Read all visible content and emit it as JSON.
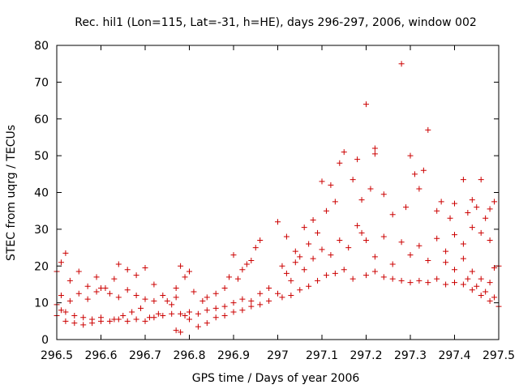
{
  "chart_data": {
    "type": "scatter",
    "title": "Rec. hil1 (Lon=115, Lat=-31, h=HE), days 296-297, 2006, window 002",
    "xlabel": "GPS time / Days of year 2006",
    "ylabel": "STEC from uqrg / TECUs",
    "xlim": [
      296.5,
      297.5
    ],
    "ylim": [
      0,
      80
    ],
    "x_ticks": [
      296.5,
      296.6,
      296.7,
      296.8,
      296.9,
      297,
      297.1,
      297.2,
      297.3,
      297.4,
      297.5
    ],
    "x_tick_labels": [
      "296.5",
      "296.6",
      "296.7",
      "296.8",
      "296.9",
      "297",
      "297.1",
      "297.2",
      "297.3",
      "297.4",
      "297.5"
    ],
    "y_ticks": [
      0,
      10,
      20,
      30,
      40,
      50,
      60,
      70,
      80
    ],
    "y_tick_labels": [
      "0",
      "10",
      "20",
      "30",
      "40",
      "50",
      "60",
      "70",
      "80"
    ],
    "grid": false,
    "legend": "none",
    "marker": "plus",
    "color": "#cc0000",
    "series": [
      {
        "points": [
          [
            296.5,
            18.5
          ],
          [
            296.51,
            21.0
          ],
          [
            296.52,
            23.5
          ],
          [
            296.53,
            16.0
          ],
          [
            296.55,
            18.5
          ],
          [
            296.57,
            14.5
          ],
          [
            296.59,
            17.0
          ],
          [
            296.61,
            14.0
          ],
          [
            296.63,
            16.5
          ],
          [
            296.64,
            20.5
          ],
          [
            296.66,
            19.0
          ],
          [
            296.68,
            17.5
          ],
          [
            296.7,
            19.5
          ],
          [
            296.72,
            15.0
          ],
          [
            296.51,
            12.0
          ],
          [
            296.53,
            10.5
          ],
          [
            296.55,
            12.5
          ],
          [
            296.57,
            11.0
          ],
          [
            296.59,
            13.0
          ],
          [
            296.6,
            14.0
          ],
          [
            296.62,
            12.5
          ],
          [
            296.64,
            11.5
          ],
          [
            296.66,
            13.5
          ],
          [
            296.68,
            12.0
          ],
          [
            296.7,
            11.0
          ],
          [
            296.72,
            10.5
          ],
          [
            296.74,
            12.0
          ],
          [
            296.76,
            9.5
          ],
          [
            296.77,
            11.5
          ],
          [
            296.5,
            9.5
          ],
          [
            296.51,
            8.0
          ],
          [
            296.52,
            7.5
          ],
          [
            296.54,
            6.5
          ],
          [
            296.56,
            6.0
          ],
          [
            296.58,
            5.5
          ],
          [
            296.6,
            6.0
          ],
          [
            296.62,
            5.0
          ],
          [
            296.64,
            5.5
          ],
          [
            296.66,
            5.0
          ],
          [
            296.68,
            5.5
          ],
          [
            296.7,
            5.0
          ],
          [
            296.72,
            6.0
          ],
          [
            296.74,
            6.5
          ],
          [
            296.76,
            7.0
          ],
          [
            296.5,
            6.5
          ],
          [
            296.52,
            5.0
          ],
          [
            296.54,
            4.5
          ],
          [
            296.56,
            4.0
          ],
          [
            296.58,
            4.5
          ],
          [
            296.6,
            5.0
          ],
          [
            296.63,
            5.5
          ],
          [
            296.65,
            6.5
          ],
          [
            296.67,
            7.5
          ],
          [
            296.69,
            8.5
          ],
          [
            296.71,
            6.0
          ],
          [
            296.73,
            7.0
          ],
          [
            296.75,
            10.5
          ],
          [
            296.77,
            14.0
          ],
          [
            296.78,
            20.0
          ],
          [
            296.79,
            17.0
          ],
          [
            296.8,
            18.5
          ],
          [
            296.81,
            13.0
          ],
          [
            296.83,
            10.5
          ],
          [
            296.84,
            11.5
          ],
          [
            296.86,
            12.5
          ],
          [
            296.88,
            14.0
          ],
          [
            296.89,
            17.0
          ],
          [
            296.9,
            23.0
          ],
          [
            296.91,
            16.5
          ],
          [
            296.92,
            19.0
          ],
          [
            296.93,
            20.5
          ],
          [
            296.94,
            21.5
          ],
          [
            296.95,
            25.0
          ],
          [
            296.96,
            27.0
          ],
          [
            296.78,
            7.0
          ],
          [
            296.79,
            6.5
          ],
          [
            296.8,
            7.5
          ],
          [
            296.82,
            7.0
          ],
          [
            296.84,
            8.0
          ],
          [
            296.86,
            8.5
          ],
          [
            296.88,
            9.0
          ],
          [
            296.9,
            10.0
          ],
          [
            296.92,
            11.0
          ],
          [
            296.94,
            10.5
          ],
          [
            296.96,
            12.5
          ],
          [
            296.98,
            14.0
          ],
          [
            296.77,
            2.5
          ],
          [
            296.78,
            2.0
          ],
          [
            296.8,
            5.5
          ],
          [
            296.82,
            3.5
          ],
          [
            296.84,
            4.5
          ],
          [
            296.86,
            6.0
          ],
          [
            296.88,
            6.5
          ],
          [
            296.9,
            7.5
          ],
          [
            296.92,
            8.0
          ],
          [
            296.94,
            9.0
          ],
          [
            296.96,
            9.5
          ],
          [
            296.98,
            10.5
          ],
          [
            297.0,
            32.0
          ],
          [
            297.01,
            20.0
          ],
          [
            297.02,
            28.0
          ],
          [
            297.03,
            16.0
          ],
          [
            297.04,
            24.0
          ],
          [
            297.05,
            22.5
          ],
          [
            297.06,
            30.5
          ],
          [
            297.07,
            26.0
          ],
          [
            297.08,
            32.5
          ],
          [
            297.09,
            29.0
          ],
          [
            297.1,
            43.0
          ],
          [
            297.11,
            35.0
          ],
          [
            297.12,
            42.0
          ],
          [
            297.13,
            37.5
          ],
          [
            297.14,
            48.0
          ],
          [
            297.15,
            51.0
          ],
          [
            297.0,
            12.5
          ],
          [
            297.01,
            11.5
          ],
          [
            297.03,
            12.0
          ],
          [
            297.05,
            13.5
          ],
          [
            297.07,
            14.5
          ],
          [
            297.09,
            16.0
          ],
          [
            297.11,
            17.5
          ],
          [
            297.13,
            18.0
          ],
          [
            297.15,
            19.0
          ],
          [
            297.17,
            16.5
          ],
          [
            297.02,
            18.0
          ],
          [
            297.04,
            21.0
          ],
          [
            297.06,
            19.0
          ],
          [
            297.08,
            22.0
          ],
          [
            297.1,
            24.5
          ],
          [
            297.12,
            23.0
          ],
          [
            297.14,
            27.0
          ],
          [
            297.16,
            25.0
          ],
          [
            297.18,
            31.0
          ],
          [
            297.19,
            29.0
          ],
          [
            297.17,
            43.5
          ],
          [
            297.18,
            49.0
          ],
          [
            297.19,
            38.0
          ],
          [
            297.2,
            64.0
          ],
          [
            297.21,
            41.0
          ],
          [
            297.22,
            50.5
          ],
          [
            297.22,
            52.0
          ],
          [
            297.24,
            39.5
          ],
          [
            297.26,
            34.0
          ],
          [
            297.28,
            75.0
          ],
          [
            297.29,
            36.0
          ],
          [
            297.3,
            50.0
          ],
          [
            297.31,
            45.0
          ],
          [
            297.32,
            41.0
          ],
          [
            297.33,
            46.0
          ],
          [
            297.34,
            57.0
          ],
          [
            297.36,
            35.0
          ],
          [
            297.2,
            17.5
          ],
          [
            297.22,
            18.5
          ],
          [
            297.24,
            17.0
          ],
          [
            297.26,
            16.5
          ],
          [
            297.28,
            16.0
          ],
          [
            297.3,
            15.5
          ],
          [
            297.32,
            16.0
          ],
          [
            297.34,
            15.5
          ],
          [
            297.36,
            16.5
          ],
          [
            297.38,
            15.0
          ],
          [
            297.4,
            15.5
          ],
          [
            297.42,
            15.0
          ],
          [
            297.44,
            13.5
          ],
          [
            297.46,
            12.0
          ],
          [
            297.48,
            10.5
          ],
          [
            297.5,
            9.0
          ],
          [
            297.2,
            27.0
          ],
          [
            297.22,
            22.5
          ],
          [
            297.24,
            28.0
          ],
          [
            297.26,
            20.5
          ],
          [
            297.28,
            26.5
          ],
          [
            297.3,
            23.0
          ],
          [
            297.32,
            25.5
          ],
          [
            297.34,
            21.5
          ],
          [
            297.36,
            27.5
          ],
          [
            297.38,
            24.0
          ],
          [
            297.4,
            28.5
          ],
          [
            297.42,
            26.0
          ],
          [
            297.44,
            30.5
          ],
          [
            297.46,
            29.0
          ],
          [
            297.48,
            27.0
          ],
          [
            297.37,
            37.5
          ],
          [
            297.39,
            33.0
          ],
          [
            297.4,
            37.0
          ],
          [
            297.42,
            43.5
          ],
          [
            297.43,
            34.5
          ],
          [
            297.44,
            38.0
          ],
          [
            297.45,
            36.0
          ],
          [
            297.46,
            43.5
          ],
          [
            297.47,
            33.0
          ],
          [
            297.48,
            35.5
          ],
          [
            297.49,
            37.5
          ],
          [
            297.38,
            21.0
          ],
          [
            297.4,
            19.0
          ],
          [
            297.42,
            22.0
          ],
          [
            297.44,
            18.5
          ],
          [
            297.46,
            16.5
          ],
          [
            297.48,
            15.5
          ],
          [
            297.49,
            19.5
          ],
          [
            297.5,
            20.0
          ],
          [
            297.49,
            11.5
          ],
          [
            297.47,
            13.0
          ],
          [
            297.45,
            14.5
          ],
          [
            297.43,
            16.5
          ]
        ]
      }
    ]
  }
}
